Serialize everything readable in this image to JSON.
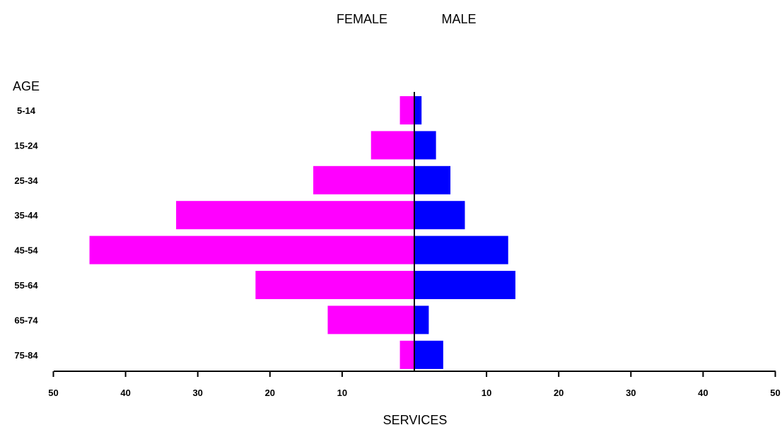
{
  "chart_data": {
    "type": "bar",
    "orientation": "horizontal",
    "layout": "population-pyramid",
    "left_header": "FEMALE",
    "right_header": "MALE",
    "ylabel": "AGE",
    "xlabel": "SERVICES",
    "categories": [
      "5-14",
      "15-24",
      "25-34",
      "35-44",
      "45-54",
      "55-64",
      "65-74",
      "75-84"
    ],
    "series": [
      {
        "name": "FEMALE",
        "side": "left",
        "color": "#ff00ff",
        "values": [
          2,
          6,
          14,
          33,
          45,
          22,
          12,
          2
        ]
      },
      {
        "name": "MALE",
        "side": "right",
        "color": "#0000ff",
        "values": [
          1,
          3,
          5,
          7,
          13,
          14,
          2,
          4
        ]
      }
    ],
    "x_ticks": [
      {
        "label": "50",
        "value": -50
      },
      {
        "label": "40",
        "value": -40
      },
      {
        "label": "30",
        "value": -30
      },
      {
        "label": "20",
        "value": -20
      },
      {
        "label": "10",
        "value": -10
      },
      {
        "label": "10",
        "value": 10
      },
      {
        "label": "20",
        "value": 20
      },
      {
        "label": "30",
        "value": 30
      },
      {
        "label": "40",
        "value": 40
      },
      {
        "label": "50",
        "value": 50
      }
    ],
    "xlim": [
      -50,
      50
    ],
    "grid": false
  }
}
